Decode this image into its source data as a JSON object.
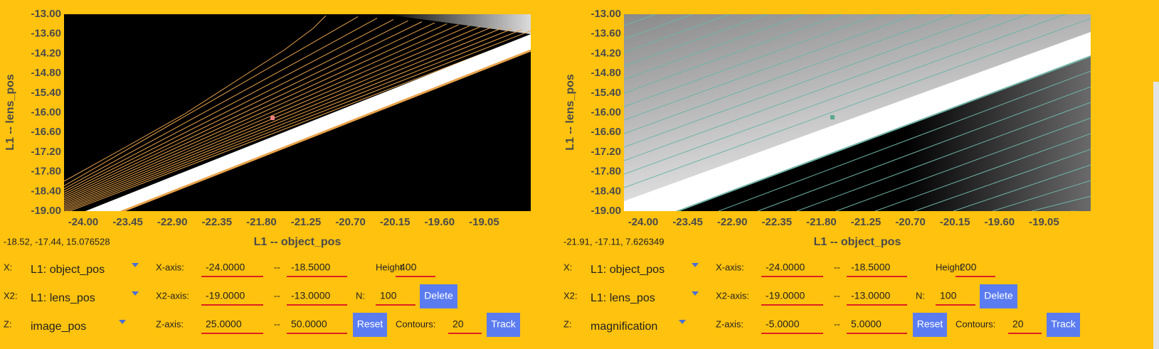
{
  "panels": [
    {
      "plot": {
        "y_ticks": [
          "-13.00",
          "-13.60",
          "-14.20",
          "-14.80",
          "-15.40",
          "-16.00",
          "-16.60",
          "-17.20",
          "-17.80",
          "-18.40",
          "-19.00"
        ],
        "x_ticks": [
          "-24.00",
          "-23.45",
          "-22.90",
          "-22.35",
          "-21.80",
          "-21.25",
          "-20.70",
          "-20.15",
          "-19.60",
          "-19.05"
        ],
        "x_label": "L1 -- object_pos",
        "y_label": "L1 -- lens_pos"
      },
      "status": "-18.52, -17.44, 15.076528",
      "controls": {
        "x": {
          "label": "X:",
          "select": "L1: object_pos",
          "axis_label": "X-axis:",
          "min": "-24.0000",
          "sep": "--",
          "max": "-18.5000",
          "height_label": "Height",
          "height": "400"
        },
        "x2": {
          "label": "X2:",
          "select": "L1: lens_pos",
          "axis_label": "X2-axis:",
          "min": "-19.0000",
          "sep": "--",
          "max": "-13.0000",
          "n_label": "N:",
          "n": "100",
          "delete": "Delete"
        },
        "z": {
          "label": "Z:",
          "select": "image_pos",
          "axis_label": "Z-axis:",
          "min": "25.0000",
          "sep": "--",
          "max": "50.0000",
          "reset": "Reset",
          "contours_label": "Contours:",
          "contours": "20",
          "track": "Track"
        }
      }
    },
    {
      "plot": {
        "y_ticks": [
          "-13.00",
          "-13.60",
          "-14.20",
          "-14.80",
          "-15.40",
          "-16.00",
          "-16.60",
          "-17.20",
          "-17.80",
          "-18.40",
          "-19.00"
        ],
        "x_ticks": [
          "-24.00",
          "-23.45",
          "-22.90",
          "-22.35",
          "-21.80",
          "-21.25",
          "-20.70",
          "-20.15",
          "-19.60",
          "-19.05"
        ],
        "x_label": "L1 -- object_pos",
        "y_label": "L1 -- lens_pos"
      },
      "status": "-21.91, -17.11, 7.626349",
      "controls": {
        "x": {
          "label": "X:",
          "select": "L1: object_pos",
          "axis_label": "X-axis:",
          "min": "-24.0000",
          "sep": "--",
          "max": "-18.5000",
          "height_label": "Height",
          "height": "200"
        },
        "x2": {
          "label": "X2:",
          "select": "L1: lens_pos",
          "axis_label": "X2-axis:",
          "min": "-19.0000",
          "sep": "--",
          "max": "-13.0000",
          "n_label": "N:",
          "n": "100",
          "delete": "Delete"
        },
        "z": {
          "label": "Z:",
          "select": "magnification",
          "axis_label": "Z-axis:",
          "min": "-5.0000",
          "sep": "--",
          "max": "5.0000",
          "reset": "Reset",
          "contours_label": "Contours:",
          "contours": "20",
          "track": "Track"
        }
      }
    }
  ]
}
